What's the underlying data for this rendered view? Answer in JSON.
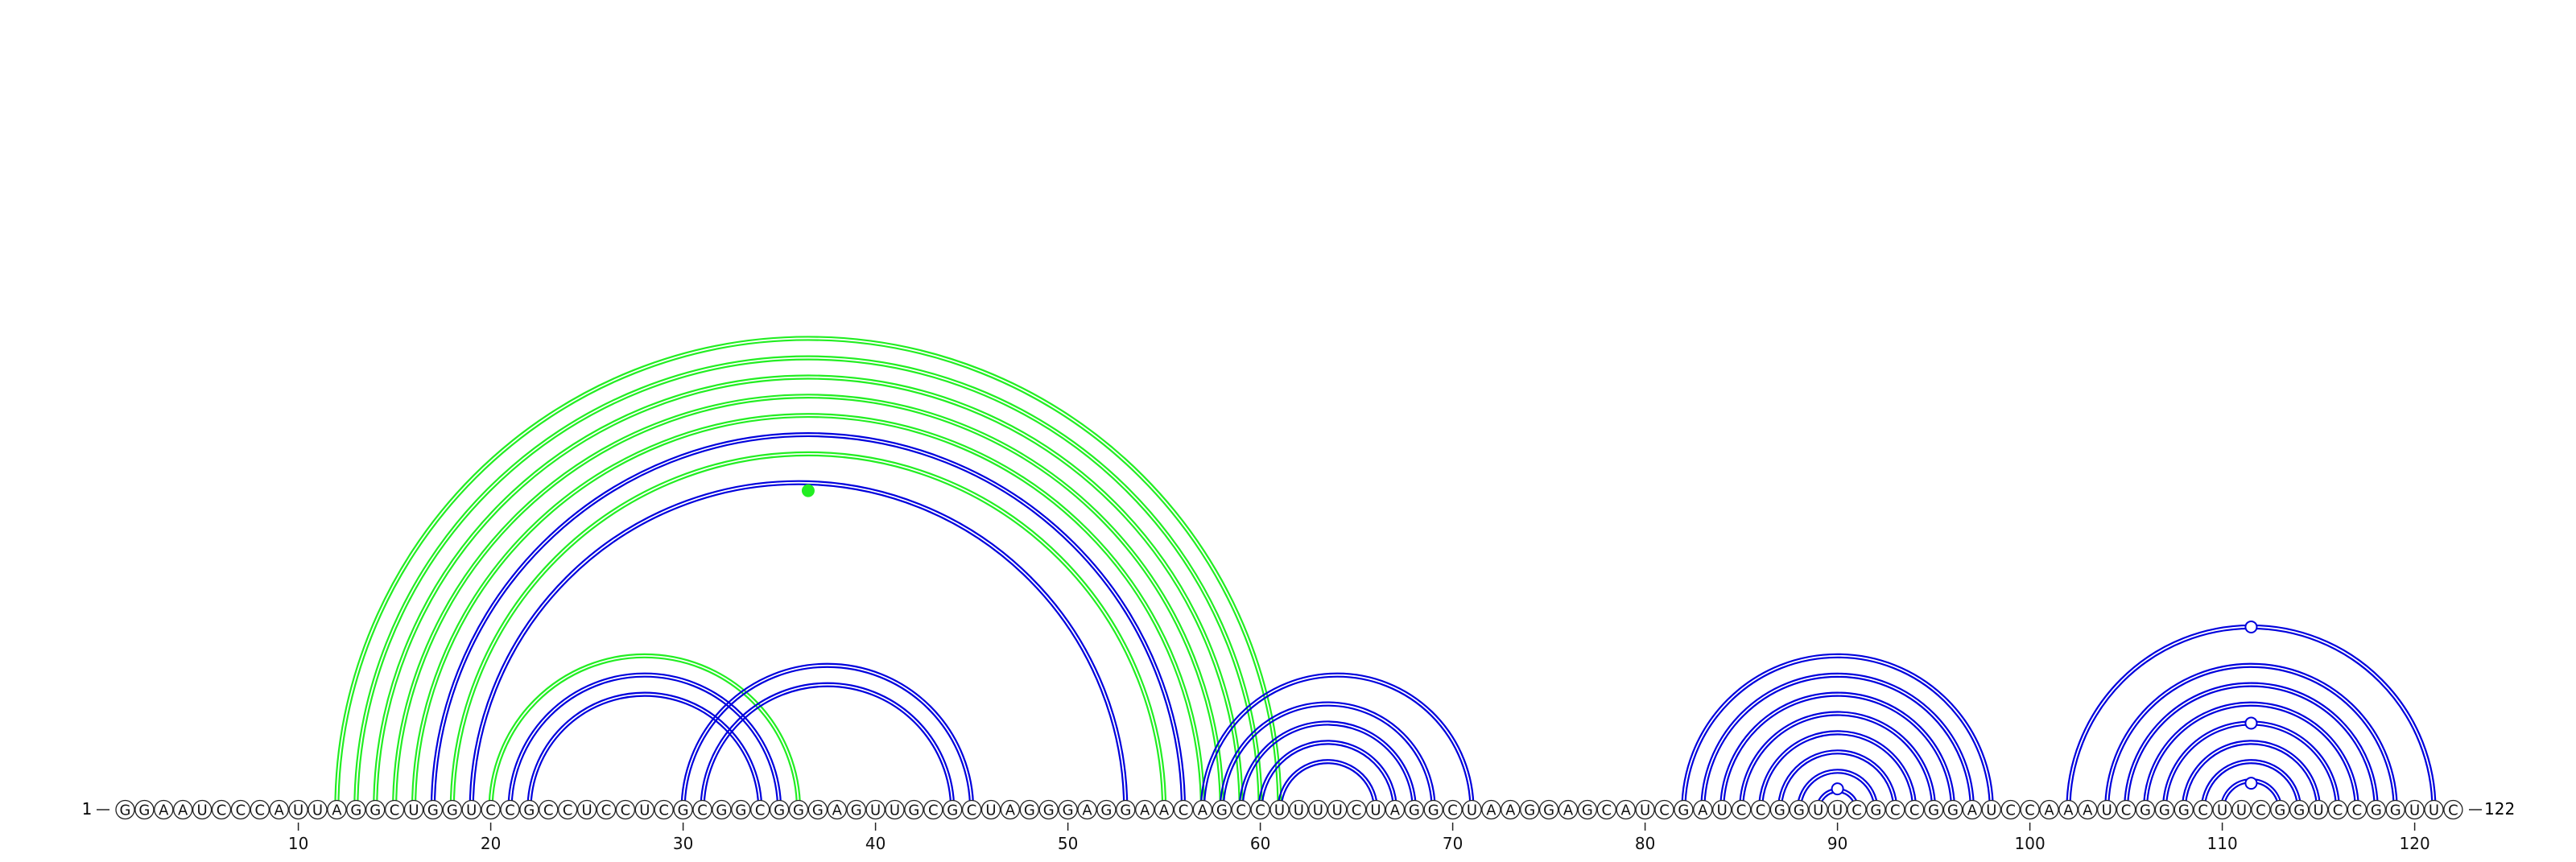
{
  "sequence": {
    "first_index": "1",
    "last_index": "122",
    "bases": "GGAAUCCCAUUAGGCUGGUCCGCCUCCUCGCGGCGGGAGUUGCGCUAGGGAGGAACAGCCUUUUCUAGGCUAAGGAGCAUCGAUCCGGUUCGCCGGAUCCAAAUCGGGCUUCGGUCCGGUUC"
  },
  "axis": {
    "ticks": [
      "10",
      "20",
      "30",
      "40",
      "50",
      "60",
      "70",
      "80",
      "90",
      "100",
      "110",
      "120"
    ]
  },
  "colors": {
    "blue": "#0000dd",
    "green": "#22ee22",
    "base_stroke": "#222222",
    "text": "#111111"
  },
  "arcs": [
    {
      "i": 12,
      "j": 61,
      "color": "green"
    },
    {
      "i": 13,
      "j": 60,
      "color": "green"
    },
    {
      "i": 14,
      "j": 59,
      "color": "green"
    },
    {
      "i": 15,
      "j": 58,
      "color": "green"
    },
    {
      "i": 16,
      "j": 57,
      "color": "green"
    },
    {
      "i": 18,
      "j": 55,
      "color": "green"
    },
    {
      "i": 17,
      "j": 56,
      "color": "blue"
    },
    {
      "i": 19,
      "j": 53,
      "color": "blue"
    },
    {
      "i": 20,
      "j": 36,
      "color": "green"
    },
    {
      "i": 21,
      "j": 35,
      "color": "blue"
    },
    {
      "i": 22,
      "j": 34,
      "color": "blue"
    },
    {
      "i": 30,
      "j": 45,
      "color": "blue"
    },
    {
      "i": 31,
      "j": 44,
      "color": "blue"
    },
    {
      "i": 57,
      "j": 71,
      "color": "blue"
    },
    {
      "i": 58,
      "j": 69,
      "color": "blue"
    },
    {
      "i": 59,
      "j": 68,
      "color": "blue"
    },
    {
      "i": 60,
      "j": 67,
      "color": "blue"
    },
    {
      "i": 61,
      "j": 66,
      "color": "blue"
    },
    {
      "i": 82,
      "j": 98,
      "color": "blue"
    },
    {
      "i": 83,
      "j": 97,
      "color": "blue"
    },
    {
      "i": 84,
      "j": 96,
      "color": "blue"
    },
    {
      "i": 85,
      "j": 95,
      "color": "blue"
    },
    {
      "i": 86,
      "j": 94,
      "color": "blue"
    },
    {
      "i": 87,
      "j": 93,
      "color": "blue"
    },
    {
      "i": 88,
      "j": 92,
      "color": "blue"
    },
    {
      "i": 89,
      "j": 91,
      "color": "blue"
    },
    {
      "i": 102,
      "j": 121,
      "color": "blue"
    },
    {
      "i": 104,
      "j": 119,
      "color": "blue"
    },
    {
      "i": 105,
      "j": 118,
      "color": "blue"
    },
    {
      "i": 106,
      "j": 117,
      "color": "blue"
    },
    {
      "i": 107,
      "j": 116,
      "color": "blue"
    },
    {
      "i": 108,
      "j": 115,
      "color": "blue"
    },
    {
      "i": 109,
      "j": 114,
      "color": "blue"
    },
    {
      "i": 110,
      "j": 113,
      "color": "blue"
    }
  ]
}
